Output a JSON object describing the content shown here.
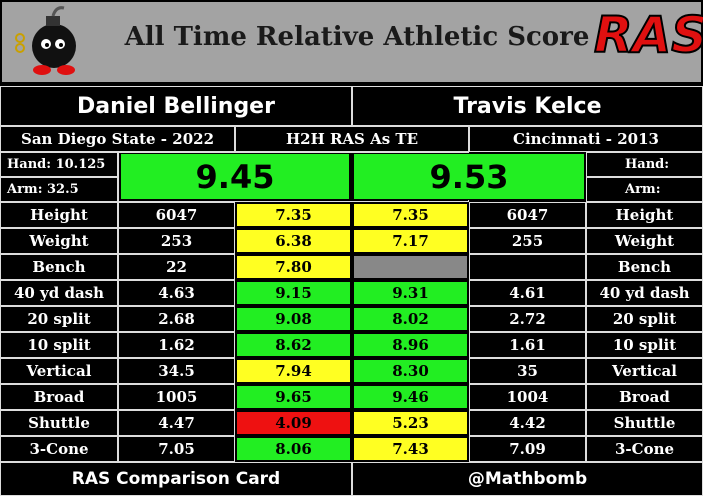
{
  "header": {
    "title": "All Time Relative Athletic Score",
    "logo": "RAS"
  },
  "players": {
    "left": {
      "name": "Daniel Bellinger",
      "school": "San Diego State - 2022",
      "hand": "Hand: 10.125",
      "arm": "Arm: 32.5",
      "ras": "9.45",
      "ras_color": "#22ee22"
    },
    "right": {
      "name": "Travis Kelce",
      "school": "Cincinnati - 2013",
      "hand": "Hand:",
      "arm": "Arm:",
      "ras": "9.53",
      "ras_color": "#22ee22"
    },
    "middle": "H2H RAS As TE"
  },
  "table": {
    "rows": [
      {
        "label": "Height",
        "left_value": "6047",
        "left_score": "7.35",
        "left_color": "#ffff22",
        "right_score": "7.35",
        "right_color": "#ffff22",
        "right_value": "6047"
      },
      {
        "label": "Weight",
        "left_value": "253",
        "left_score": "6.38",
        "left_color": "#ffff22",
        "right_score": "7.17",
        "right_color": "#ffff22",
        "right_value": "255"
      },
      {
        "label": "Bench",
        "left_value": "22",
        "left_score": "7.80",
        "left_color": "#ffff22",
        "right_score": null,
        "right_color": "#888888",
        "right_value": null
      },
      {
        "label": "40 yd dash",
        "left_value": "4.63",
        "left_score": "9.15",
        "left_color": "#22ee22",
        "right_score": "9.31",
        "right_color": "#22ee22",
        "right_value": "4.61"
      },
      {
        "label": "20 split",
        "left_value": "2.68",
        "left_score": "9.08",
        "left_color": "#22ee22",
        "right_score": "8.02",
        "right_color": "#22ee22",
        "right_value": "2.72"
      },
      {
        "label": "10 split",
        "left_value": "1.62",
        "left_score": "8.62",
        "left_color": "#22ee22",
        "right_score": "8.96",
        "right_color": "#22ee22",
        "right_value": "1.61"
      },
      {
        "label": "Vertical",
        "left_value": "34.5",
        "left_score": "7.94",
        "left_color": "#ffff22",
        "right_score": "8.30",
        "right_color": "#22ee22",
        "right_value": "35"
      },
      {
        "label": "Broad",
        "left_value": "1005",
        "left_score": "9.65",
        "left_color": "#22ee22",
        "right_score": "9.46",
        "right_color": "#22ee22",
        "right_value": "1004"
      },
      {
        "label": "Shuttle",
        "left_value": "4.47",
        "left_score": "4.09",
        "left_color": "#ee1111",
        "right_score": "5.23",
        "right_color": "#ffff22",
        "right_value": "4.42"
      },
      {
        "label": "3-Cone",
        "left_value": "7.05",
        "left_score": "8.06",
        "left_color": "#22ee22",
        "right_score": "7.43",
        "right_color": "#ffff22",
        "right_value": "7.09"
      }
    ]
  },
  "footer": {
    "left": "RAS Comparison Card",
    "right": "@Mathbomb"
  }
}
